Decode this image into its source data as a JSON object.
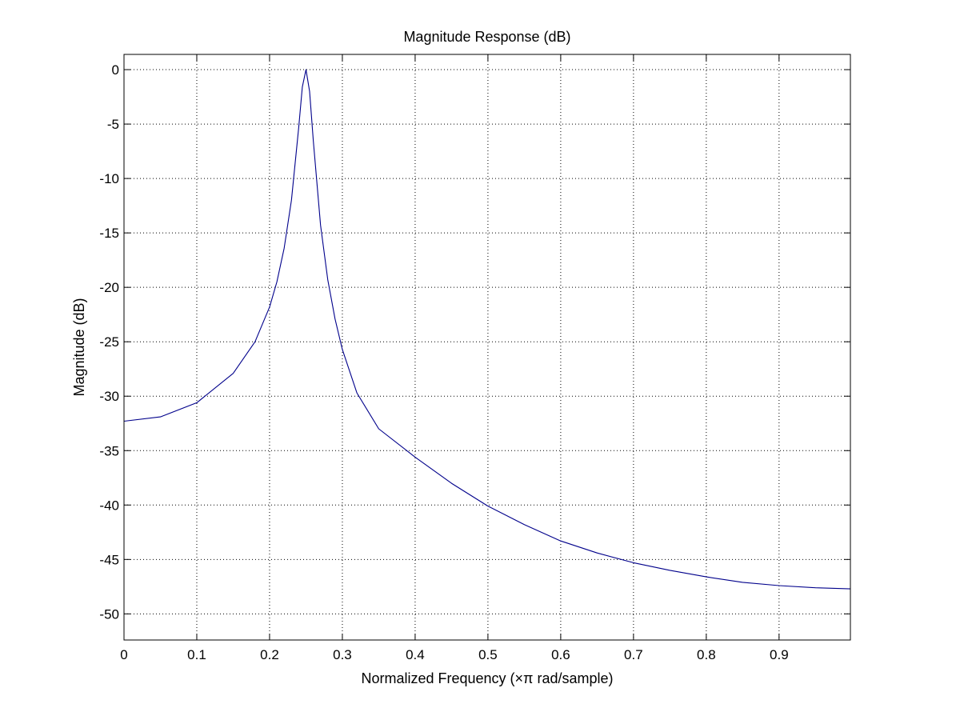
{
  "chart_data": {
    "type": "line",
    "title": "Magnitude Response (dB)",
    "xlabel": "Normalized Frequency (×π rad/sample)",
    "ylabel": "Magnitude (dB)",
    "xlim": [
      0,
      0.998
    ],
    "ylim": [
      -52.4,
      1.4
    ],
    "xticks": [
      0,
      0.1,
      0.2,
      0.3,
      0.4,
      0.5,
      0.6,
      0.7,
      0.8,
      0.9
    ],
    "xtick_labels": [
      "0",
      "0.1",
      "0.2",
      "0.3",
      "0.4",
      "0.5",
      "0.6",
      "0.7",
      "0.8",
      "0.9"
    ],
    "yticks": [
      0,
      -5,
      -10,
      -15,
      -20,
      -25,
      -30,
      -35,
      -40,
      -45,
      -50
    ],
    "ytick_labels": [
      "0",
      "-5",
      "-10",
      "-15",
      "-20",
      "-25",
      "-30",
      "-35",
      "-40",
      "-45",
      "-50"
    ],
    "grid": true,
    "series": [
      {
        "color": "#00008B",
        "x": [
          0,
          0.05,
          0.1,
          0.15,
          0.18,
          0.2,
          0.21,
          0.22,
          0.23,
          0.24,
          0.245,
          0.25,
          0.255,
          0.26,
          0.27,
          0.28,
          0.29,
          0.3,
          0.32,
          0.35,
          0.4,
          0.45,
          0.5,
          0.55,
          0.6,
          0.65,
          0.7,
          0.75,
          0.8,
          0.85,
          0.9,
          0.95,
          0.998
        ],
        "y": [
          -32.3,
          -31.9,
          -30.6,
          -27.9,
          -25.0,
          -21.8,
          -19.5,
          -16.4,
          -12.0,
          -5.3,
          -1.6,
          0,
          -2.0,
          -6.5,
          -14.3,
          -19.3,
          -22.9,
          -25.7,
          -29.7,
          -33.0,
          -35.6,
          -38.0,
          -40.1,
          -41.8,
          -43.3,
          -44.4,
          -45.3,
          -46.0,
          -46.6,
          -47.1,
          -47.4,
          -47.6,
          -47.7
        ]
      }
    ]
  }
}
